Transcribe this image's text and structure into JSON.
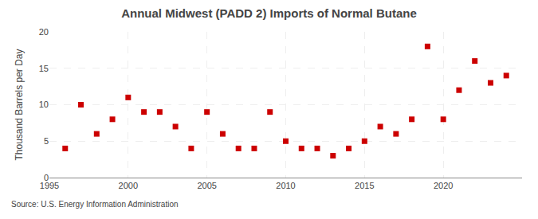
{
  "chart_data": {
    "type": "scatter",
    "title": "Annual Midwest (PADD 2) Imports of Normal Butane",
    "ylabel": "Thousand Barrels per Day",
    "source": "Source: U.S. Energy Information Administration",
    "x": [
      1996,
      1997,
      1998,
      1999,
      2000,
      2001,
      2002,
      2003,
      2004,
      2005,
      2006,
      2007,
      2008,
      2009,
      2010,
      2011,
      2012,
      2013,
      2014,
      2015,
      2016,
      2017,
      2018,
      2019,
      2020,
      2021,
      2022,
      2023,
      2024
    ],
    "values": [
      4,
      10,
      6,
      8,
      11,
      9,
      9,
      7,
      4,
      9,
      6,
      4,
      4,
      9,
      5,
      4,
      4,
      3,
      4,
      5,
      7,
      6,
      8,
      18,
      8,
      12,
      16,
      13,
      14
    ],
    "color": "#cc0000",
    "marker": "square",
    "xlim": [
      1995,
      2025
    ],
    "ylim": [
      0,
      20
    ],
    "xticks": [
      1995,
      2000,
      2005,
      2010,
      2015,
      2020
    ],
    "yticks": [
      0,
      5,
      10,
      15,
      20
    ],
    "grid": true
  }
}
